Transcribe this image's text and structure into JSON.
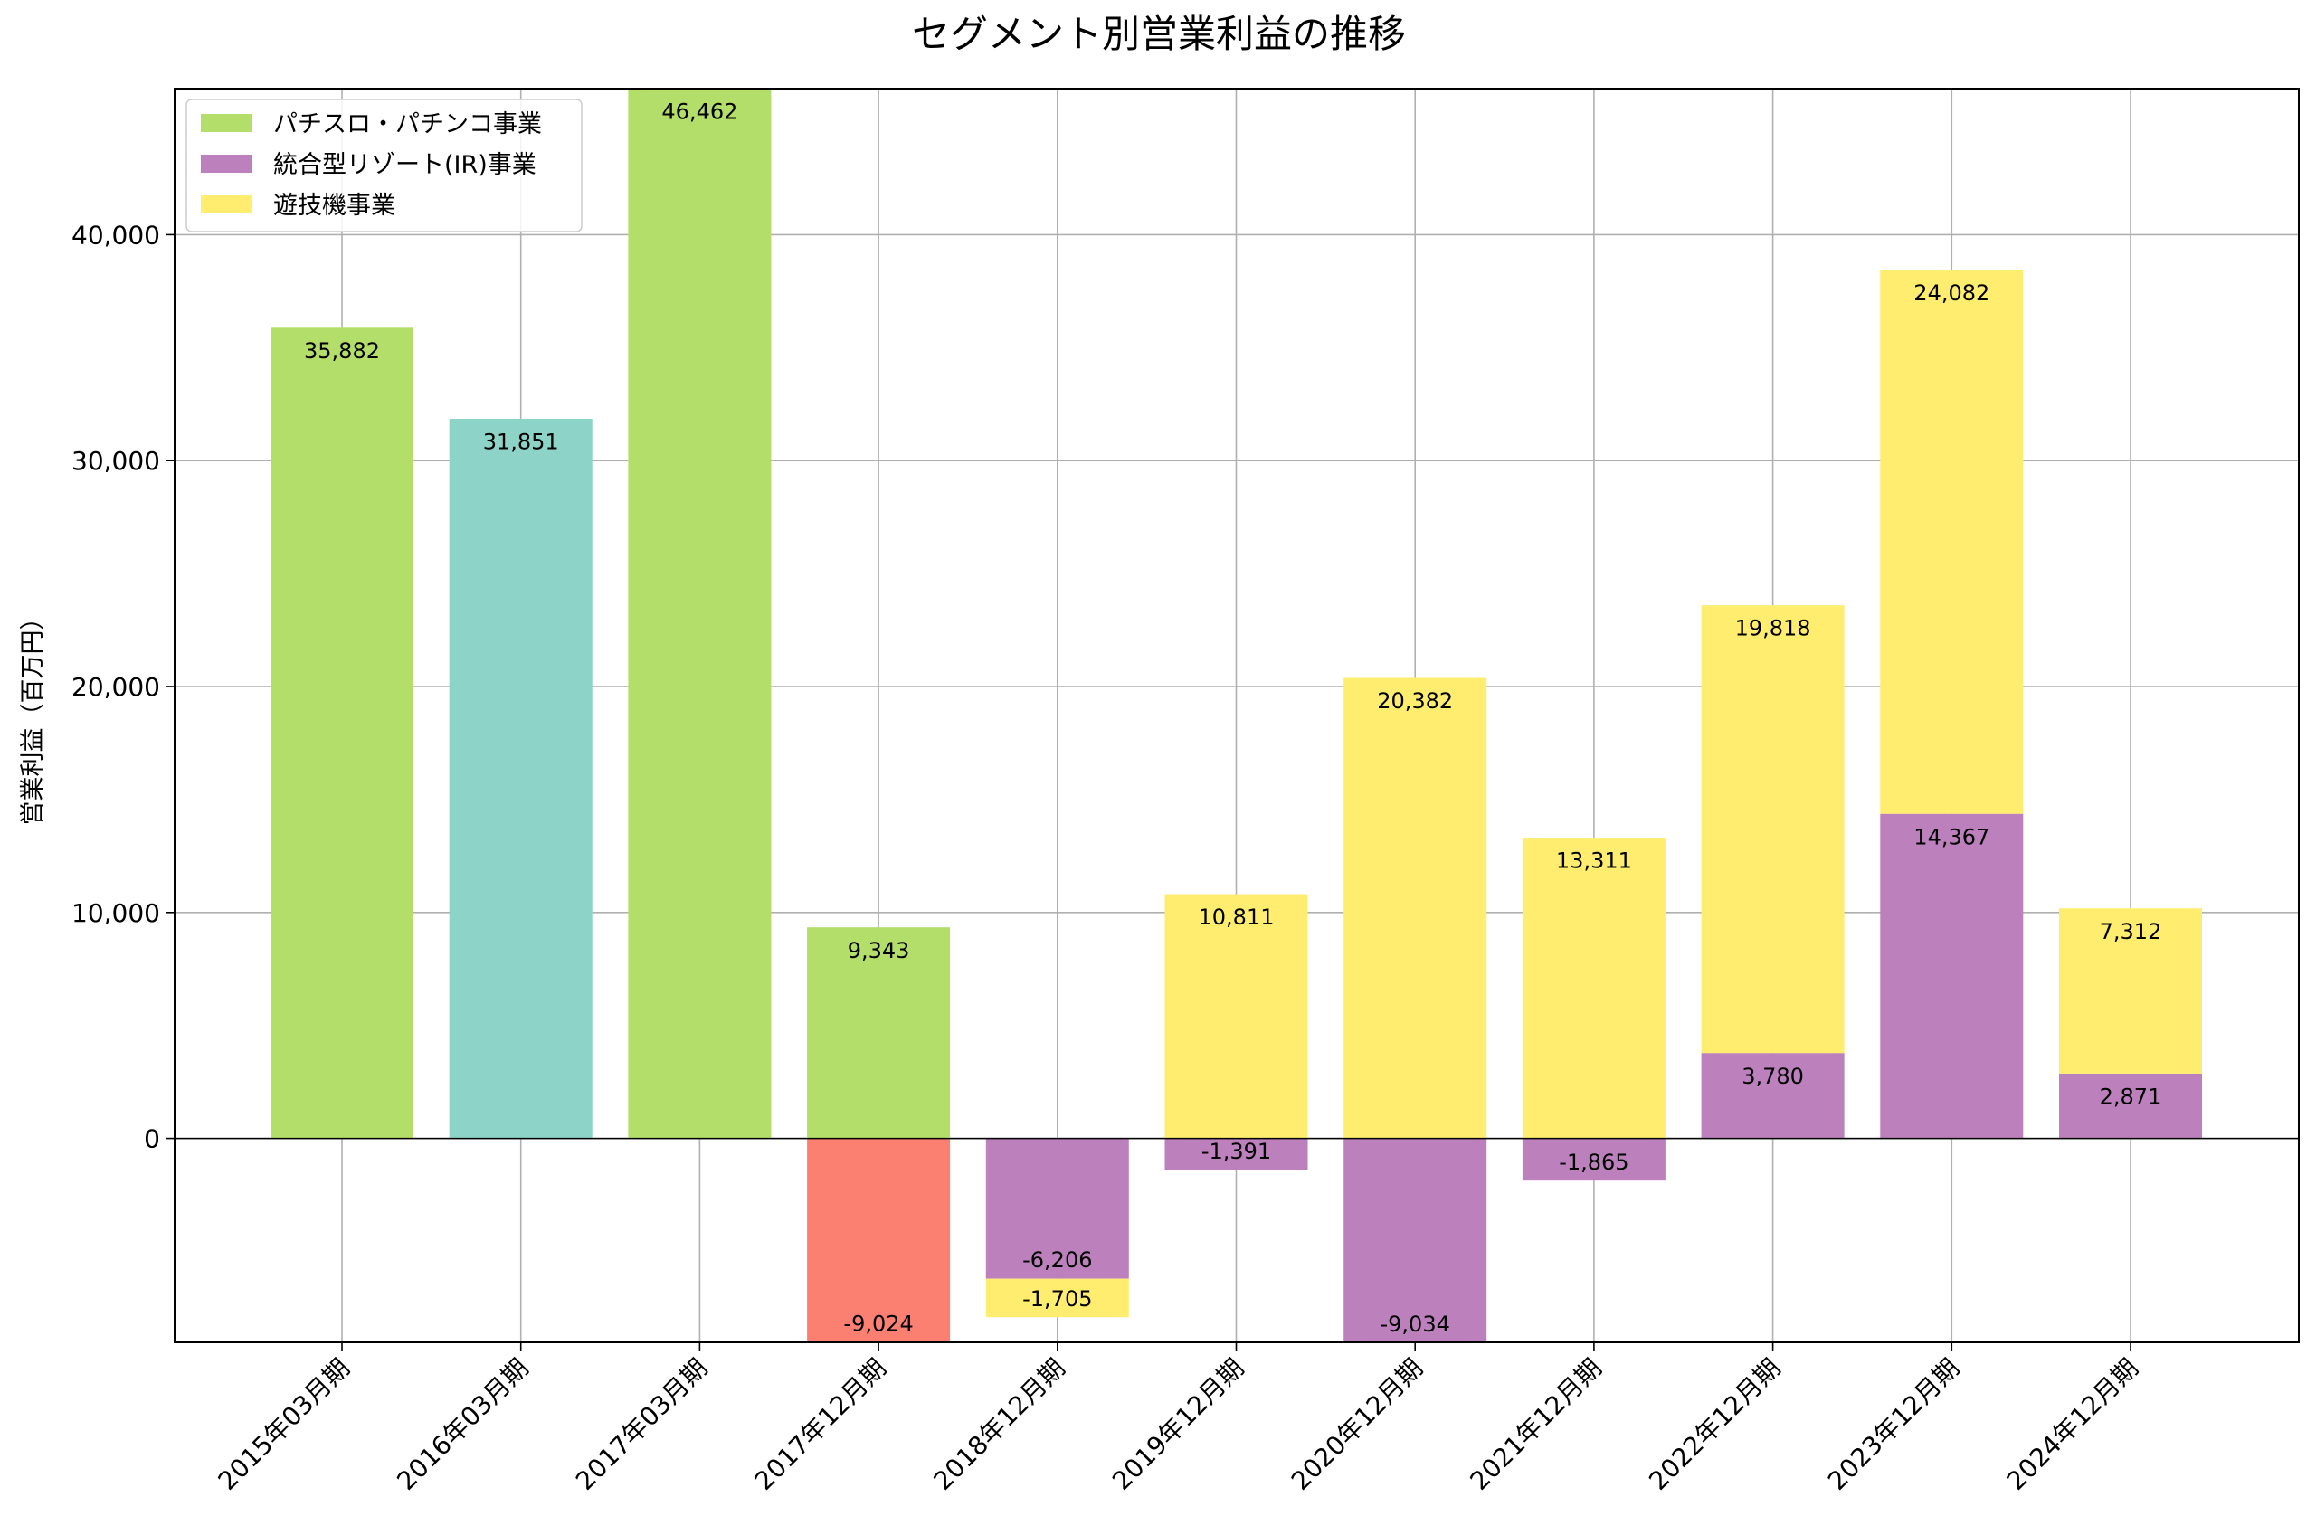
{
  "chart_data": {
    "type": "bar",
    "stacked": true,
    "title": "セグメント別営業利益の推移",
    "xlabel": "",
    "ylabel": "営業利益（百万円）",
    "ylim": [
      -9024,
      46462
    ],
    "yticks": [
      0,
      10000,
      20000,
      30000,
      40000
    ],
    "ytick_labels": [
      "0",
      "10,000",
      "20,000",
      "30,000",
      "40,000"
    ],
    "grid": true,
    "legend": {
      "position": "top-left",
      "entries": [
        {
          "name": "パチスロ・パチンコ事業",
          "color": "#b3de69"
        },
        {
          "name": "統合型リゾート(IR)事業",
          "color": "#bc80bd"
        },
        {
          "name": "遊技機事業",
          "color": "#ffed6f"
        }
      ]
    },
    "colors": {
      "pachislot": "#b3de69",
      "ir": "#bc80bd",
      "amusement": "#ffed6f",
      "teal": "#8dd3c7",
      "salmon": "#fb8072"
    },
    "categories": [
      "2015年03月期",
      "2016年03月期",
      "2017年03月期",
      "2017年12月期",
      "2018年12月期",
      "2019年12月期",
      "2020年12月期",
      "2021年12月期",
      "2022年12月期",
      "2023年12月期",
      "2024年12月期"
    ],
    "bars": [
      {
        "category": "2015年03月期",
        "segments": [
          {
            "value": 35882,
            "label": "35,882",
            "color": "#b3de69"
          }
        ]
      },
      {
        "category": "2016年03月期",
        "segments": [
          {
            "value": 31851,
            "label": "31,851",
            "color": "#8dd3c7"
          }
        ]
      },
      {
        "category": "2017年03月期",
        "segments": [
          {
            "value": 46462,
            "label": "46,462",
            "color": "#b3de69"
          }
        ]
      },
      {
        "category": "2017年12月期",
        "segments": [
          {
            "value": 9343,
            "label": "9,343",
            "color": "#b3de69"
          },
          {
            "value": -9024,
            "label": "-9,024",
            "color": "#fb8072"
          }
        ]
      },
      {
        "category": "2018年12月期",
        "segments": [
          {
            "value": -6206,
            "label": "-6,206",
            "color": "#bc80bd"
          },
          {
            "value": -1705,
            "label": "-1,705",
            "color": "#ffed6f"
          }
        ]
      },
      {
        "category": "2019年12月期",
        "segments": [
          {
            "value": -1391,
            "label": "-1,391",
            "color": "#bc80bd"
          },
          {
            "value": 10811,
            "label": "10,811",
            "color": "#ffed6f"
          }
        ]
      },
      {
        "category": "2020年12月期",
        "segments": [
          {
            "value": -9034,
            "label": "-9,034",
            "color": "#bc80bd"
          },
          {
            "value": 20382,
            "label": "20,382",
            "color": "#ffed6f"
          }
        ]
      },
      {
        "category": "2021年12月期",
        "segments": [
          {
            "value": -1865,
            "label": "-1,865",
            "color": "#bc80bd"
          },
          {
            "value": 13311,
            "label": "13,311",
            "color": "#ffed6f"
          }
        ]
      },
      {
        "category": "2022年12月期",
        "segments": [
          {
            "value": 3780,
            "label": "3,780",
            "color": "#bc80bd"
          },
          {
            "value": 19818,
            "label": "19,818",
            "color": "#ffed6f"
          }
        ]
      },
      {
        "category": "2023年12月期",
        "segments": [
          {
            "value": 14367,
            "label": "14,367",
            "color": "#bc80bd"
          },
          {
            "value": 24082,
            "label": "24,082",
            "color": "#ffed6f"
          }
        ]
      },
      {
        "category": "2024年12月期",
        "segments": [
          {
            "value": 2871,
            "label": "2,871",
            "color": "#bc80bd"
          },
          {
            "value": 7312,
            "label": "7,312",
            "color": "#ffed6f"
          }
        ]
      }
    ]
  }
}
